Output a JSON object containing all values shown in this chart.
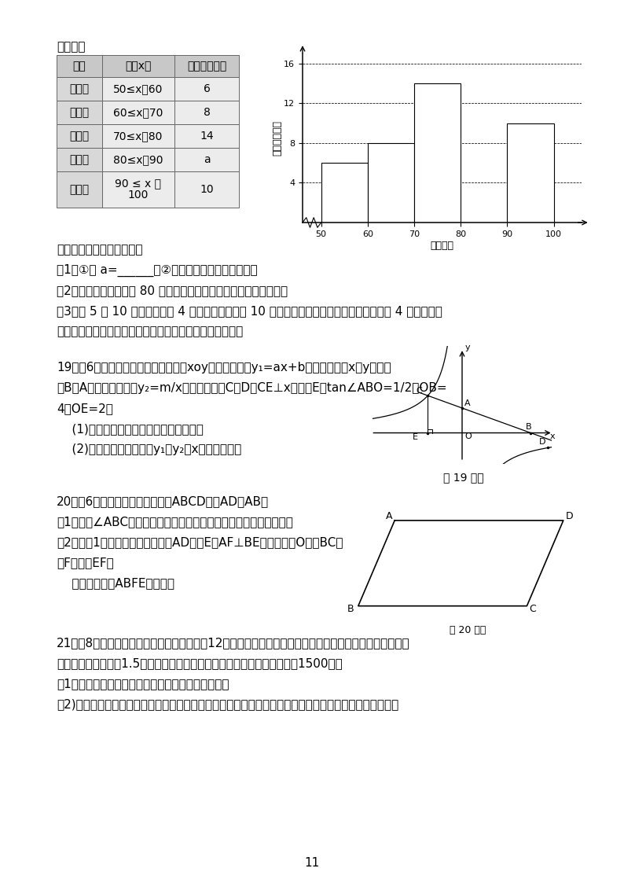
{
  "bg_color": "#ffffff",
  "section_intro": "如图表：",
  "table_headers": [
    "组别",
    "成绩x分",
    "频数（人数）"
  ],
  "table_rows": [
    [
      "第１组",
      "50≤x＜60",
      "6"
    ],
    [
      "第２组",
      "60≤x＜70",
      "8"
    ],
    [
      "第３组",
      "70≤x＜80",
      "14"
    ],
    [
      "第４组",
      "80≤x＜90",
      "a"
    ],
    [
      "第５组",
      "90 ≤ x ＜\n100",
      "10"
    ]
  ],
  "bar_values": [
    6,
    8,
    14,
    0,
    10
  ],
  "bar_x_starts": [
    50,
    60,
    70,
    80,
    90
  ],
  "bar_color": "#ffffff",
  "bar_edge_color": "#000000",
  "chart_ylabel": "频数（人数）",
  "chart_xlabel": "测试成绩",
  "chart_yticks": [
    4,
    8,
    12,
    16
  ],
  "chart_xticks": [
    50,
    60,
    70,
    80,
    90,
    100
  ],
  "chart_ylim": [
    0,
    17
  ],
  "chart_xlim": [
    46,
    106
  ],
  "questions": [
    "请结合图表完成下列各题：",
    "（1）①则 a=______；②频数分布直方图补充完整；",
    "（2）若测试成绩不低于 80 分为优秀，则本次测试的优秀率是多少？",
    "（3）第 5 组 10 名同学中，有 4 名男同学，现将这 10 名同学平均分成两组进行对抗练习，且 4 名男同学每",
    "组分两人，求小明与小强两名男同学能分在同一组的概率．"
  ],
  "q19_lines": [
    "19．（6分）如图，在平面直角坐标系xoy中，一次函数y₁=ax+b的图象分别与x，y轴交于",
    "点B，A，与反比例函数y₂=m/x的图象交于点C，D，CE⊥x轴于点E，tan∠ABO=1/2，OB=",
    "4，OE=2．",
    "    (1)求一次函数与反比例函数的解析式；",
    "    (2)根据图象直接写出当y₁＜y₂时x的取值范围．"
  ],
  "q19_caption": "第 19 题图",
  "q20_lines": [
    "20．（6分）如图，在平行四边形ABCD中，AD＞AB．",
    "（1）作出∠ABC的平分线（尺规作图，保留作图痕迹，不写作法）；",
    "（2）若（1）中所作的角平分线交AD于点E，AF⊥BE，垂足为点O，交BC于",
    "点F，连接EF．",
    "    求证：四边形ABFE为菱形．"
  ],
  "q21_lines": [
    "21．（8分）一项工程，甲、乙两公司合作，12天可以完成；如果甲、乙两公司单独完成此项工程，乙公司",
    "所用时间是甲公司的1.5倍，乙公司每天的施工费比甲公司每天的施工费少1500元．",
    "（1）甲、乙两公司单独完成此项工程，各需多少天？",
    "（2)若让一个公司单独完成这项工程，要使乙公司的总施工费较少，则甲公司每天的施工费应低于多少元？"
  ]
}
